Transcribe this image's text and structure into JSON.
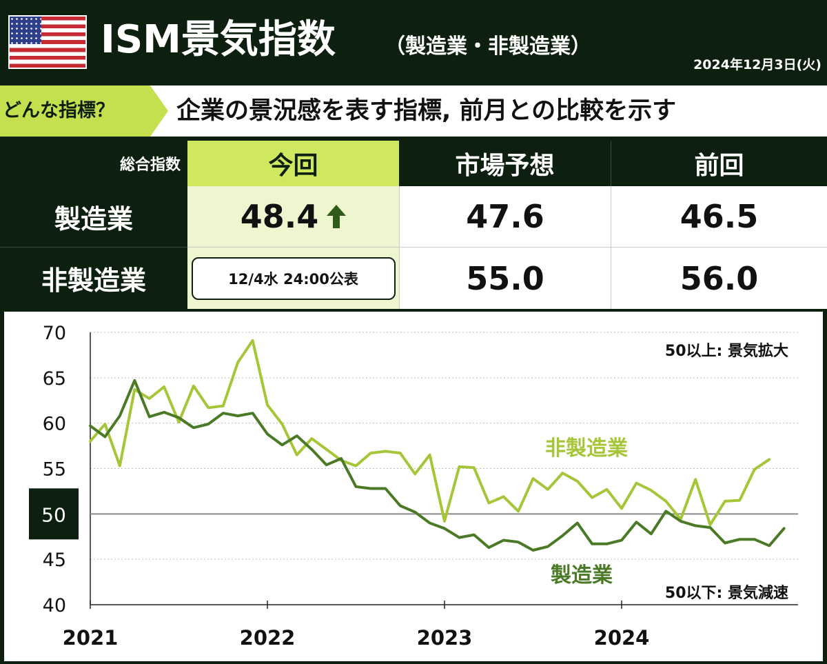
{
  "header": {
    "title": "ISM景気指数",
    "subtitle": "（製造業・非製造業）",
    "date": "2024年12月3日(火)"
  },
  "banner": {
    "tag": "どんな指標？",
    "description": "企業の景況感を表す指標, 前月との比較を示す"
  },
  "table": {
    "corner_label": "総合指数",
    "col_current": "今回",
    "col_forecast": "市場予想",
    "col_previous": "前回",
    "rows": [
      {
        "label": "製造業",
        "current": "48.4",
        "forecast": "47.6",
        "previous": "46.5"
      },
      {
        "label": "非製造業",
        "current": "12/4水 24:00公表",
        "forecast": "55.0",
        "previous": "56.0"
      }
    ],
    "arrow_icon": "up-arrow-icon"
  },
  "colors": {
    "background": "#0d1f0f",
    "accent": "#c5e04f",
    "manufacturing": "#4a7a26",
    "non_manufacturing": "#a6c639",
    "threshold": "#8a8a8a"
  },
  "chart_data": {
    "type": "line",
    "x_tick_labels": [
      "2021",
      "2022",
      "2023",
      "2024"
    ],
    "ylim": [
      40,
      70
    ],
    "yticks": [
      40,
      45,
      50,
      55,
      60,
      65,
      70
    ],
    "y_highlight": 50,
    "grid": "horizontal dotted",
    "annotations": {
      "upper": "50以上: 景気拡大",
      "lower": "50以下: 景気減速"
    },
    "series": [
      {
        "name": "非製造業",
        "start": "2021-01",
        "values": [
          58.0,
          59.9,
          55.3,
          63.7,
          62.7,
          64.0,
          60.1,
          64.1,
          61.7,
          61.9,
          66.7,
          69.1,
          62.0,
          59.9,
          56.5,
          58.3,
          57.1,
          55.9,
          55.3,
          56.7,
          56.9,
          56.7,
          54.4,
          56.5,
          49.2,
          55.2,
          55.1,
          51.2,
          51.9,
          50.3,
          53.9,
          52.7,
          54.5,
          53.6,
          51.8,
          52.7,
          50.6,
          53.4,
          52.6,
          51.4,
          49.4,
          53.8,
          48.8,
          51.4,
          51.5,
          54.9,
          56.0
        ]
      },
      {
        "name": "製造業",
        "start": "2021-01",
        "values": [
          59.7,
          58.5,
          60.8,
          64.7,
          60.7,
          61.2,
          60.6,
          59.5,
          59.9,
          61.1,
          60.8,
          61.1,
          58.8,
          57.6,
          58.6,
          57.1,
          55.4,
          56.1,
          53.0,
          52.8,
          52.8,
          50.9,
          50.2,
          49.0,
          48.4,
          47.4,
          47.7,
          46.3,
          47.1,
          46.9,
          46.0,
          46.4,
          47.6,
          49.0,
          46.7,
          46.7,
          47.1,
          49.1,
          47.8,
          50.3,
          49.2,
          48.7,
          48.5,
          46.8,
          47.2,
          47.2,
          46.5,
          48.4
        ]
      }
    ]
  }
}
